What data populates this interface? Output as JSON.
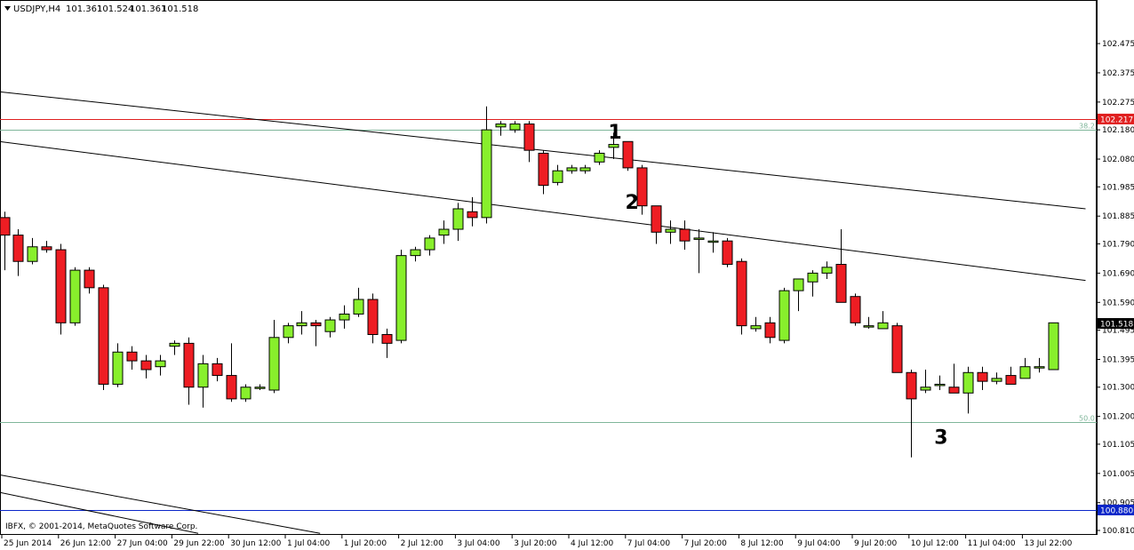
{
  "header": {
    "triangle_icon": "dropdown-triangle-icon",
    "symbol": "USDJPY,H4",
    "open": "101.361",
    "high": "101.524",
    "low": "101.361",
    "close": "101.518"
  },
  "copyright": "IBFX, © 2001-2014, MetaQuotes Software Corp.",
  "colors": {
    "bull": "#88ef2c",
    "bear": "#ee1d23",
    "resistance": "#e02020",
    "fib": "#7fb69a",
    "bid_tag": "#000000",
    "support_tag": "#0b26c9"
  },
  "chart_data": {
    "type": "candlestick",
    "timeframe": "H4",
    "ylim": [
      100.81,
      102.545
    ],
    "y_ticks": [
      "102.475",
      "102.375",
      "102.275",
      "102.180",
      "102.080",
      "101.985",
      "101.885",
      "101.790",
      "101.690",
      "101.590",
      "101.495",
      "101.395",
      "101.300",
      "101.200",
      "101.105",
      "101.005",
      "100.905",
      "100.810"
    ],
    "x_ticks": [
      "25 Jun 2014",
      "26 Jun 12:00",
      "27 Jun 04:00",
      "29 Jun 22:00",
      "30 Jun 12:00",
      "1 Jul 04:00",
      "1 Jul 20:00",
      "2 Jul 12:00",
      "3 Jul 04:00",
      "3 Jul 20:00",
      "4 Jul 12:00",
      "7 Jul 04:00",
      "7 Jul 20:00",
      "8 Jul 12:00",
      "9 Jul 04:00",
      "9 Jul 20:00",
      "10 Jul 12:00",
      "11 Jul 04:00",
      "13 Jul 22:00"
    ],
    "candles": [
      [
        101.88,
        101.9,
        101.7,
        101.82
      ],
      [
        101.82,
        101.84,
        101.68,
        101.73
      ],
      [
        101.73,
        101.81,
        101.72,
        101.78
      ],
      [
        101.78,
        101.8,
        101.76,
        101.77
      ],
      [
        101.77,
        101.79,
        101.48,
        101.52
      ],
      [
        101.52,
        101.71,
        101.51,
        101.7
      ],
      [
        101.7,
        101.71,
        101.62,
        101.64
      ],
      [
        101.64,
        101.65,
        101.29,
        101.31
      ],
      [
        101.31,
        101.45,
        101.3,
        101.42
      ],
      [
        101.42,
        101.44,
        101.36,
        101.39
      ],
      [
        101.39,
        101.41,
        101.33,
        101.36
      ],
      [
        101.37,
        101.41,
        101.34,
        101.39
      ],
      [
        101.44,
        101.46,
        101.41,
        101.45
      ],
      [
        101.45,
        101.47,
        101.24,
        101.3
      ],
      [
        101.3,
        101.41,
        101.23,
        101.38
      ],
      [
        101.38,
        101.4,
        101.32,
        101.34
      ],
      [
        101.34,
        101.45,
        101.25,
        101.26
      ],
      [
        101.26,
        101.31,
        101.25,
        101.3
      ],
      [
        101.3,
        101.31,
        101.29,
        101.3
      ],
      [
        101.29,
        101.53,
        101.28,
        101.47
      ],
      [
        101.47,
        101.52,
        101.45,
        101.51
      ],
      [
        101.51,
        101.56,
        101.48,
        101.52
      ],
      [
        101.52,
        101.53,
        101.44,
        101.51
      ],
      [
        101.49,
        101.54,
        101.47,
        101.53
      ],
      [
        101.53,
        101.58,
        101.5,
        101.55
      ],
      [
        101.55,
        101.64,
        101.54,
        101.6
      ],
      [
        101.6,
        101.62,
        101.45,
        101.48
      ],
      [
        101.48,
        101.5,
        101.4,
        101.45
      ],
      [
        101.46,
        101.77,
        101.45,
        101.75
      ],
      [
        101.75,
        101.78,
        101.73,
        101.77
      ],
      [
        101.77,
        101.82,
        101.75,
        101.81
      ],
      [
        101.82,
        101.87,
        101.79,
        101.84
      ],
      [
        101.84,
        101.93,
        101.8,
        101.91
      ],
      [
        101.9,
        101.95,
        101.85,
        101.88
      ],
      [
        101.88,
        102.26,
        101.86,
        102.18
      ],
      [
        102.19,
        102.21,
        102.16,
        102.2
      ],
      [
        102.18,
        102.21,
        102.17,
        102.2
      ],
      [
        102.2,
        102.21,
        102.07,
        102.11
      ],
      [
        102.1,
        102.11,
        101.96,
        101.99
      ],
      [
        102.0,
        102.06,
        101.99,
        102.04
      ],
      [
        102.04,
        102.06,
        102.03,
        102.05
      ],
      [
        102.04,
        102.06,
        102.03,
        102.05
      ],
      [
        102.07,
        102.11,
        102.06,
        102.1
      ],
      [
        102.12,
        102.17,
        102.08,
        102.13
      ],
      [
        102.14,
        102.14,
        102.04,
        102.05
      ],
      [
        102.05,
        102.06,
        101.89,
        101.92
      ],
      [
        101.92,
        101.92,
        101.79,
        101.83
      ],
      [
        101.83,
        101.87,
        101.79,
        101.84
      ],
      [
        101.84,
        101.87,
        101.77,
        101.8
      ],
      [
        101.81,
        101.84,
        101.69,
        101.81
      ],
      [
        101.8,
        101.83,
        101.76,
        101.8
      ],
      [
        101.8,
        101.81,
        101.71,
        101.72
      ],
      [
        101.73,
        101.74,
        101.48,
        101.51
      ],
      [
        101.5,
        101.54,
        101.49,
        101.51
      ],
      [
        101.52,
        101.54,
        101.45,
        101.47
      ],
      [
        101.46,
        101.64,
        101.45,
        101.63
      ],
      [
        101.63,
        101.67,
        101.56,
        101.67
      ],
      [
        101.66,
        101.7,
        101.61,
        101.69
      ],
      [
        101.69,
        101.73,
        101.67,
        101.71
      ],
      [
        101.72,
        101.84,
        101.59,
        101.59
      ],
      [
        101.61,
        101.62,
        101.51,
        101.52
      ],
      [
        101.51,
        101.54,
        101.5,
        101.51
      ],
      [
        101.5,
        101.56,
        101.5,
        101.52
      ],
      [
        101.51,
        101.52,
        101.35,
        101.35
      ],
      [
        101.35,
        101.36,
        101.06,
        101.26
      ],
      [
        101.29,
        101.36,
        101.28,
        101.3
      ],
      [
        101.31,
        101.34,
        101.29,
        101.31
      ],
      [
        101.3,
        101.38,
        101.28,
        101.28
      ],
      [
        101.28,
        101.37,
        101.21,
        101.35
      ],
      [
        101.35,
        101.37,
        101.29,
        101.32
      ],
      [
        101.32,
        101.35,
        101.31,
        101.33
      ],
      [
        101.34,
        101.37,
        101.32,
        101.31
      ],
      [
        101.33,
        101.4,
        101.33,
        101.37
      ],
      [
        101.37,
        101.4,
        101.35,
        101.37
      ],
      [
        101.36,
        101.52,
        101.36,
        101.52
      ]
    ],
    "horizontal_levels": [
      {
        "price": 102.217,
        "label": "102.217",
        "color": "#e02020"
      },
      {
        "price": 102.18,
        "label": "38.2",
        "color": "#7fb69a"
      },
      {
        "price": 101.18,
        "label": "50.0",
        "color": "#7fb69a"
      },
      {
        "price": 100.88,
        "label": "100.880",
        "color": "#0b26c9"
      }
    ],
    "current_bid": {
      "price": 101.518,
      "label": "101.518"
    },
    "trendlines": [
      {
        "from_candle": -0.3,
        "from_price": 102.31,
        "to_candle": 76.3,
        "to_price": 101.91
      },
      {
        "from_candle": -0.3,
        "from_price": 102.14,
        "to_candle": 76.3,
        "to_price": 101.665
      },
      {
        "from_candle": -0.3,
        "from_price": 101.0,
        "to_candle": 22.3,
        "to_price": 100.8
      },
      {
        "from_candle": -0.3,
        "from_price": 100.94,
        "to_candle": 13.7,
        "to_price": 100.8
      }
    ],
    "annotations": [
      {
        "text": "1",
        "candle": 43.0,
        "price": 102.175
      },
      {
        "text": "2",
        "candle": 44.2,
        "price": 101.935
      },
      {
        "text": "3",
        "candle": 66.0,
        "price": 101.13
      }
    ]
  }
}
